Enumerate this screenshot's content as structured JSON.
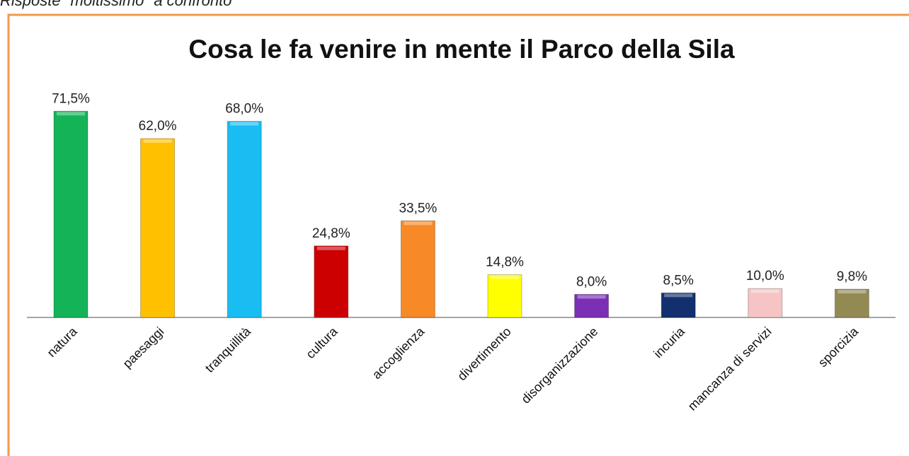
{
  "heading": "Risposte \"moltissimo\" a confronto",
  "chart_data": {
    "type": "bar",
    "title": "Cosa le fa venire in mente il Parco della Sila",
    "categories": [
      "natura",
      "paesaggi",
      "tranquillità",
      "cultura",
      "accoglienza",
      "divertimento",
      "disorganizzazione",
      "incuria",
      "mancanza di servizi",
      "sporcizia"
    ],
    "values": [
      71.5,
      62.0,
      68.0,
      24.8,
      33.5,
      14.8,
      8.0,
      8.5,
      10.0,
      9.8
    ],
    "value_labels": [
      "71,5%",
      "62,0%",
      "68,0%",
      "24,8%",
      "33,5%",
      "14,8%",
      "8,0%",
      "8,5%",
      "10,0%",
      "9,8%"
    ],
    "colors": [
      "#14b357",
      "#ffc000",
      "#19bdf2",
      "#cc0000",
      "#f78a26",
      "#ffff00",
      "#7b2fb5",
      "#12306e",
      "#f6c4c4",
      "#938953"
    ]
  }
}
